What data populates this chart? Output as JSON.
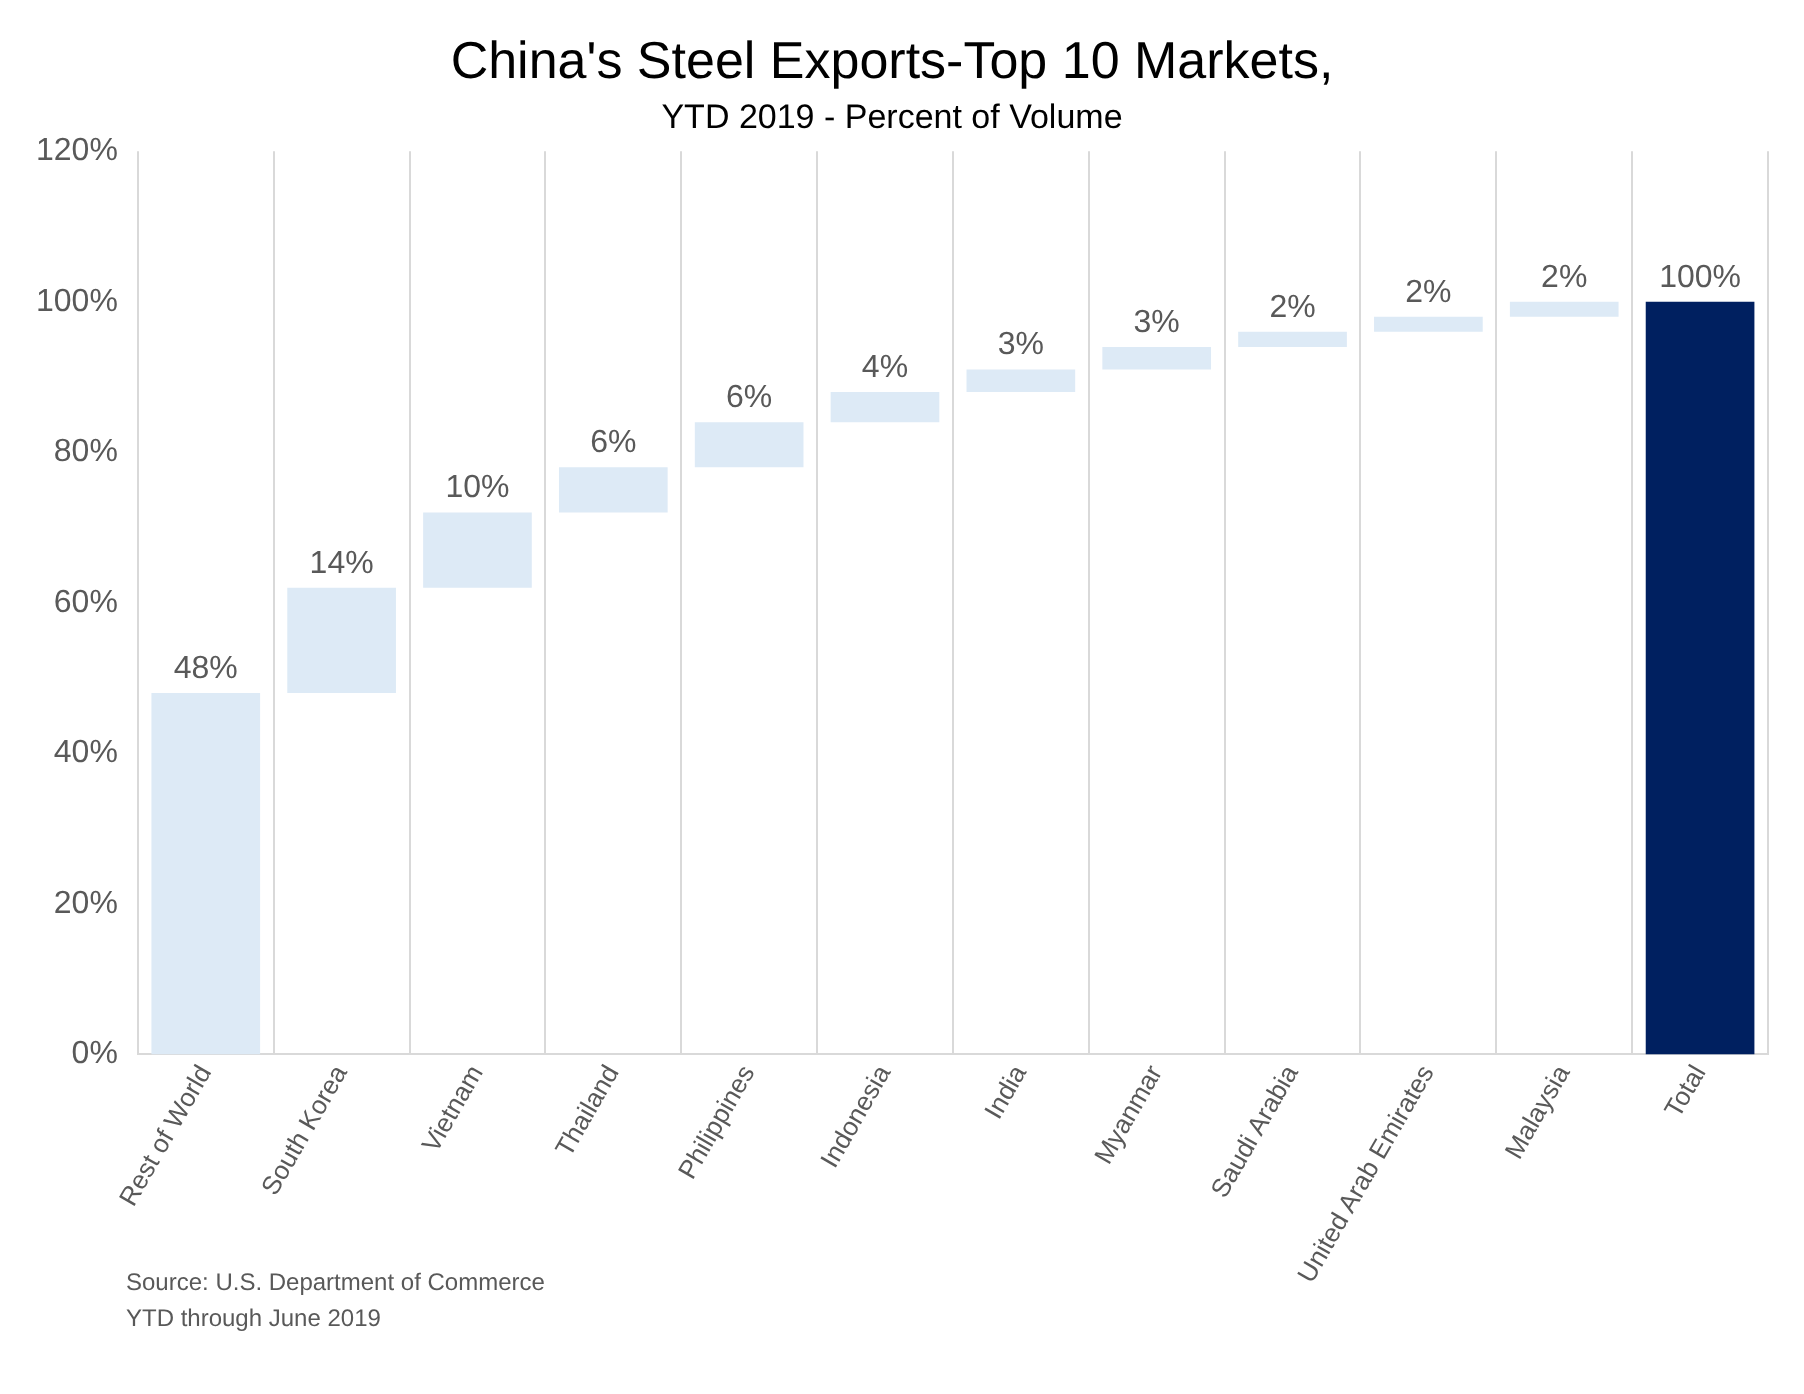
{
  "chart_data": {
    "type": "bar",
    "title": "China's Steel Exports-Top 10 Markets,",
    "subtitle": "YTD 2019 - Percent of Volume",
    "categories": [
      "Rest of World",
      "South Korea",
      "Vietnam",
      "Thailand",
      "Philippines",
      "Indonesia",
      "India",
      "Myanmar",
      "Saudi Arabia",
      "United Arab Emirates",
      "Malaysia",
      "Total"
    ],
    "values": [
      48,
      14,
      10,
      6,
      6,
      4,
      3,
      3,
      2,
      2,
      2,
      100
    ],
    "base": [
      0,
      48,
      62,
      72,
      78,
      84,
      88,
      91,
      94,
      96,
      98,
      0
    ],
    "colors": [
      "#ddeaf6",
      "#ddeaf6",
      "#ddeaf6",
      "#ddeaf6",
      "#ddeaf6",
      "#ddeaf6",
      "#ddeaf6",
      "#ddeaf6",
      "#ddeaf6",
      "#ddeaf6",
      "#ddeaf6",
      "#002060"
    ],
    "value_labels": [
      "48%",
      "14%",
      "10%",
      "6%",
      "6%",
      "4%",
      "3%",
      "3%",
      "2%",
      "2%",
      "2%",
      "100%"
    ],
    "ylim": [
      0,
      120
    ],
    "yticks": [
      {
        "value": 0,
        "label": "0%"
      },
      {
        "value": 20,
        "label": "20%"
      },
      {
        "value": 40,
        "label": "40%"
      },
      {
        "value": 60,
        "label": "60%"
      },
      {
        "value": 80,
        "label": "80%"
      },
      {
        "value": 100,
        "label": "100%"
      },
      {
        "value": 120,
        "label": "120%"
      }
    ],
    "grid": "x",
    "legend": false,
    "annotations": [
      "Source: U.S. Department of Commerce",
      "YTD through June 2019"
    ]
  }
}
